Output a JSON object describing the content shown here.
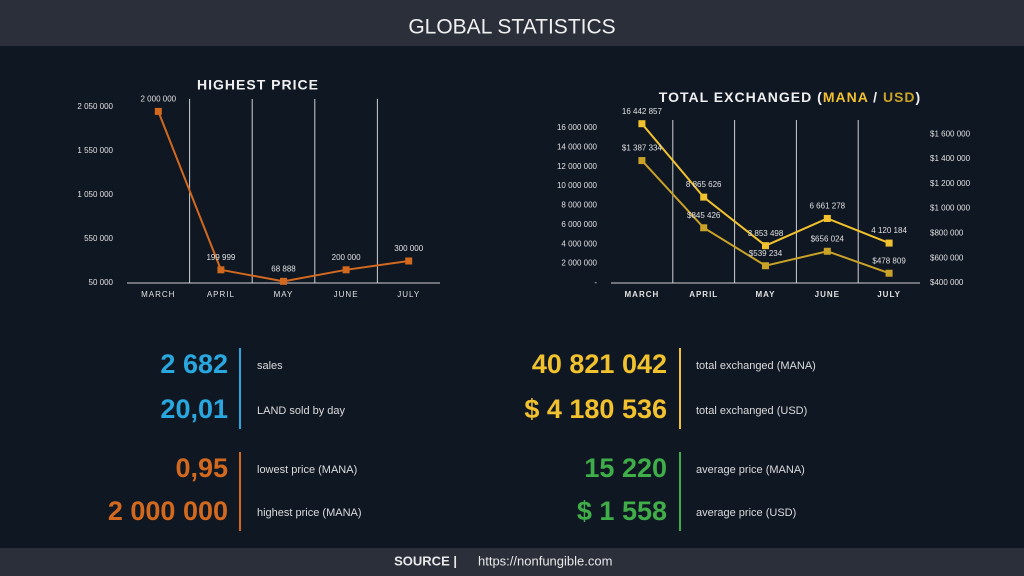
{
  "header": {
    "title": "GLOBAL STATISTICS"
  },
  "chart_data": [
    {
      "type": "line",
      "title": "HIGHEST PRICE",
      "categories": [
        "MARCH",
        "APRIL",
        "MAY",
        "JUNE",
        "JULY"
      ],
      "series": [
        {
          "color": "#d2691e",
          "values": [
            2000000,
            199999,
            68888,
            200000,
            300000
          ],
          "value_labels": [
            "2 000 000",
            "199 999",
            "68 888",
            "200 000",
            "300 000"
          ]
        }
      ],
      "ylim": [
        50000,
        2050000
      ],
      "yticks": [
        {
          "value": 50000,
          "label": "50 000"
        },
        {
          "value": 550000,
          "label": "550 000"
        },
        {
          "value": 1050000,
          "label": "1 050 000"
        },
        {
          "value": 1550000,
          "label": "1 550 000"
        },
        {
          "value": 2050000,
          "label": "2 050 000"
        }
      ]
    },
    {
      "type": "line",
      "title": [
        "TOTAL EXCHANGED (",
        "MANA",
        " / ",
        "USD",
        ")"
      ],
      "categories": [
        "MARCH",
        "APRIL",
        "MAY",
        "JUNE",
        "JULY"
      ],
      "series": [
        {
          "name": "MANA",
          "color": "#f2c12e",
          "values": [
            16442857,
            8865626,
            3853498,
            6661278,
            4120184
          ],
          "value_labels": [
            "16 442 857",
            "8 865 626",
            "3 853 498",
            "6 661 278",
            "4 120 184"
          ]
        },
        {
          "name": "USD",
          "color": "#c9a227",
          "axis": "y2",
          "values": [
            1387334,
            845426,
            539234,
            656024,
            478809
          ],
          "value_labels": [
            "$1 387 334",
            "$845 426",
            "$539 234",
            "$656 024",
            "$478 809"
          ]
        }
      ],
      "ylim": [
        0,
        16000000
      ],
      "yticks": [
        {
          "value": 0,
          "label": "-"
        },
        {
          "value": 2000000,
          "label": "2 000 000"
        },
        {
          "value": 4000000,
          "label": "4 000 000"
        },
        {
          "value": 6000000,
          "label": "6 000 000"
        },
        {
          "value": 8000000,
          "label": "8 000 000"
        },
        {
          "value": 10000000,
          "label": "10 000 000"
        },
        {
          "value": 12000000,
          "label": "12 000 000"
        },
        {
          "value": 14000000,
          "label": "14 000 000"
        },
        {
          "value": 16000000,
          "label": "16 000 000"
        }
      ],
      "y2lim": [
        400000,
        1650000
      ],
      "y2ticks": [
        {
          "value": 400000,
          "label": "$400 000"
        },
        {
          "value": 600000,
          "label": "$600 000"
        },
        {
          "value": 800000,
          "label": "$800 000"
        },
        {
          "value": 1000000,
          "label": "$1 000 000"
        },
        {
          "value": 1200000,
          "label": "$1 200 000"
        },
        {
          "value": 1400000,
          "label": "$1 400 000"
        },
        {
          "value": 1600000,
          "label": "$1 600 000"
        }
      ]
    }
  ],
  "stats": [
    {
      "color": "#29a8e0",
      "items": [
        {
          "value": "2 682",
          "label": "sales"
        },
        {
          "value": "20,01",
          "label": "LAND sold by day"
        }
      ]
    },
    {
      "color": "#f2c12e",
      "items": [
        {
          "value": "40 821 042",
          "label": "total exchanged (MANA)"
        },
        {
          "value": "$ 4 180 536",
          "label": "total exchanged (USD)"
        }
      ]
    },
    {
      "color": "#d2691e",
      "items": [
        {
          "value": "0,95",
          "label": "lowest price (MANA)"
        },
        {
          "value": "2 000 000",
          "label": "highest price (MANA)"
        }
      ]
    },
    {
      "color": "#3fae49",
      "items": [
        {
          "value": "15 220",
          "label": "average price (MANA)"
        },
        {
          "value": "$ 1 558",
          "label": "average price (USD)"
        }
      ]
    }
  ],
  "footer": {
    "source": "SOURCE |",
    "url": "https://nonfungible.com"
  }
}
